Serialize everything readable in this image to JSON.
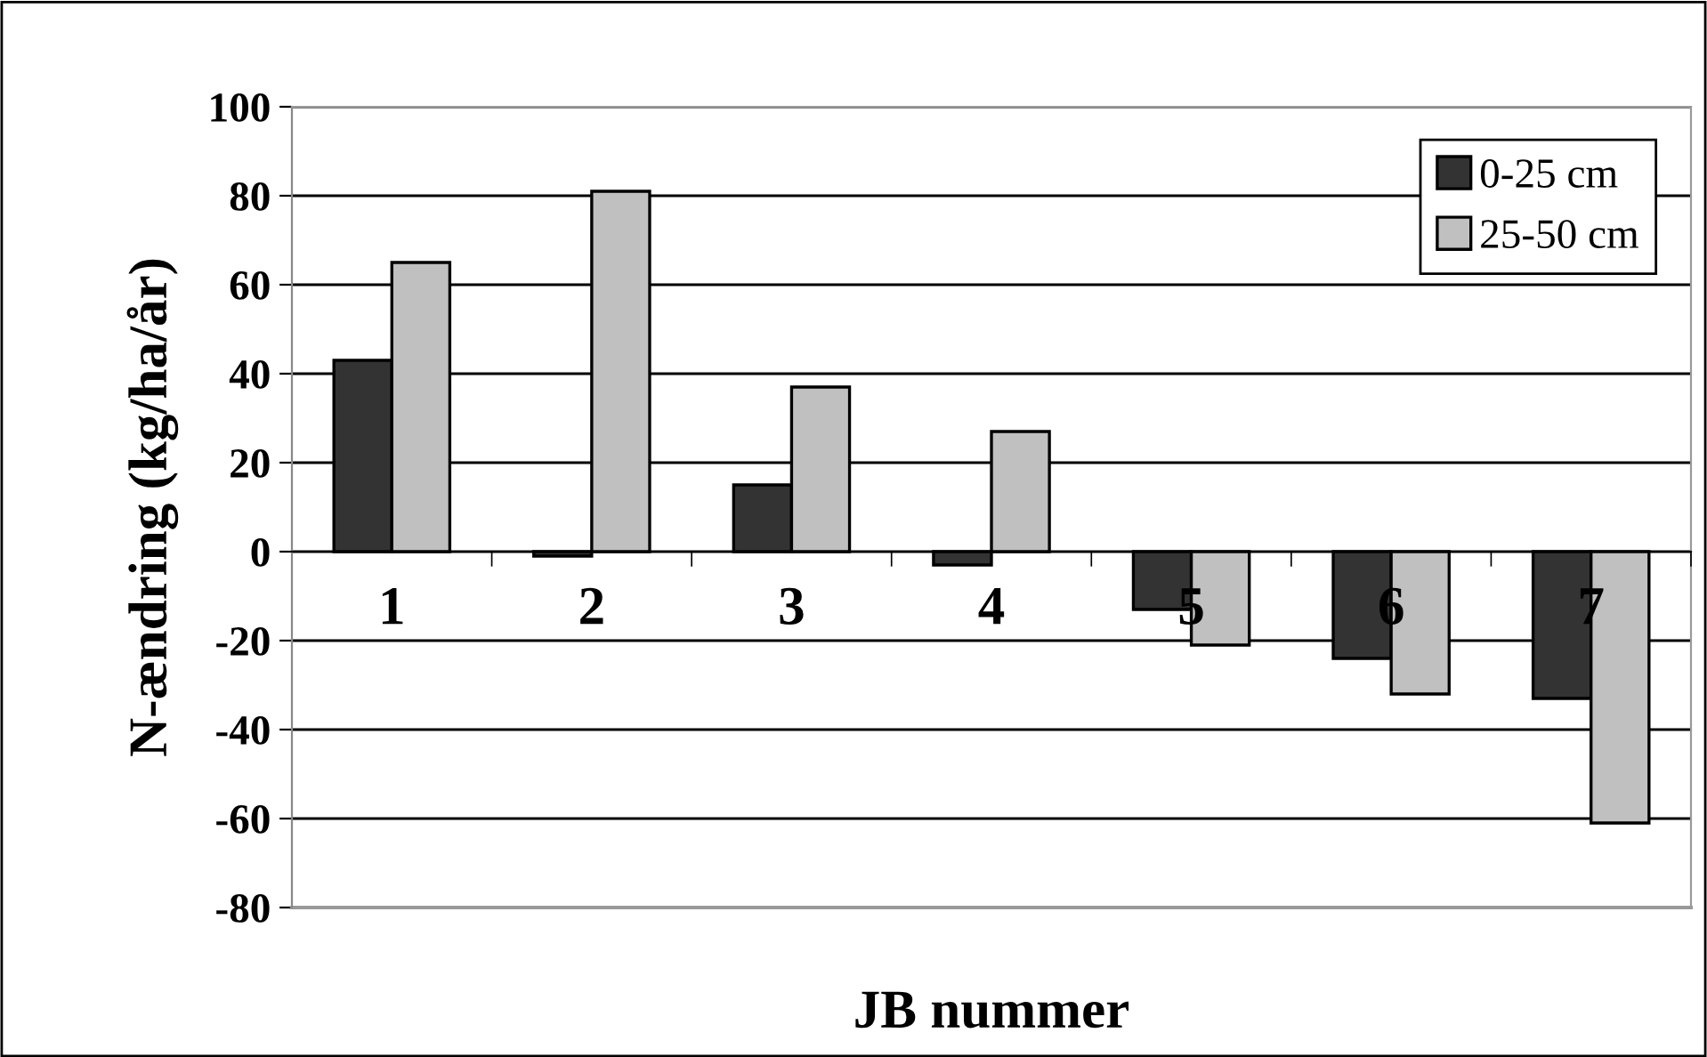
{
  "chart_data": {
    "type": "bar",
    "xlabel": "JB nummer",
    "ylabel": "N-ændring (kg/ha/år)",
    "categories": [
      "1",
      "2",
      "3",
      "4",
      "5",
      "6",
      "7"
    ],
    "series": [
      {
        "name": "0-25 cm",
        "color": "#333333",
        "values": [
          43,
          -1,
          15,
          -3,
          -13,
          -24,
          -33
        ]
      },
      {
        "name": "25-50 cm",
        "color": "#c0c0c0",
        "values": [
          65,
          81,
          37,
          27,
          -21,
          -32,
          -61
        ]
      }
    ],
    "ylim": [
      -80,
      100
    ],
    "yticks": [
      {
        "value": -80,
        "label": "-80"
      },
      {
        "value": -60,
        "label": "-60"
      },
      {
        "value": -40,
        "label": "-40"
      },
      {
        "value": -20,
        "label": "-20"
      },
      0,
      20,
      40,
      60,
      80,
      100
    ],
    "grid": "y",
    "legend": "top right"
  }
}
